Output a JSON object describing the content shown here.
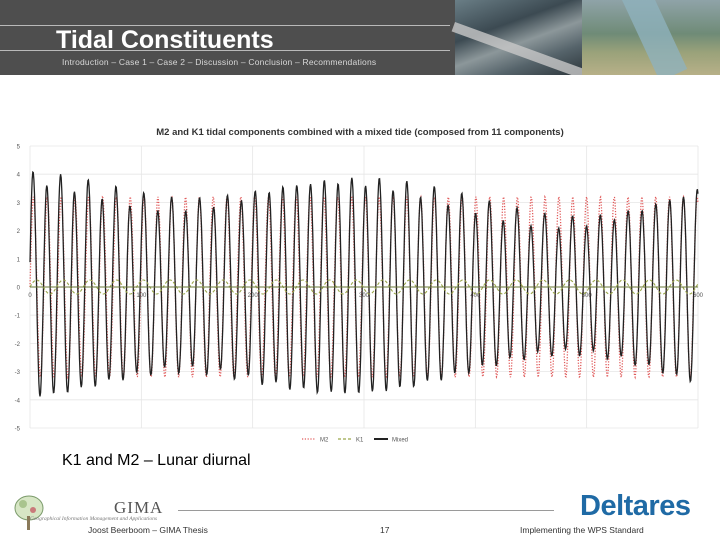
{
  "header": {
    "title": "Tidal Constituents",
    "breadcrumb": "Introduction – Case 1 – Case 2 – Discussion – Conclusion – Recommendations"
  },
  "chart_data": {
    "type": "line",
    "title": "M2 and K1 tidal components combined with a mixed tide (composed from 11 components)",
    "xlabel": "",
    "ylabel": "",
    "xlim": [
      0,
      600
    ],
    "ylim": [
      -5,
      5
    ],
    "x_ticks": [
      0,
      100,
      200,
      300,
      400,
      500,
      600
    ],
    "y_ticks": [
      -5,
      -4,
      -3,
      -2,
      -1,
      0,
      1,
      2,
      3,
      4,
      5
    ],
    "grid": true,
    "legend_position": "bottom",
    "sample_step": 0.5,
    "series": [
      {
        "name": "M2",
        "color": "#e05a5a",
        "style": "dotted",
        "formula": "3.2 * sin(2*pi*x/12.42)"
      },
      {
        "name": "K1",
        "color": "#9aa64a",
        "style": "dashed",
        "formula": "0.25 * sin(2*pi*x/23.93)"
      },
      {
        "name": "Mixed",
        "color": "#222222",
        "style": "solid",
        "formula": "3.2*sin(2*pi*x/12.42) + 0.5*sin(2*pi*x/12.0)*... (11 constituents)"
      }
    ]
  },
  "caption": "K1 and M2 – Lunar diurnal",
  "footer": {
    "author": "Joost Beerboom – GIMA Thesis",
    "page": "17",
    "right": "Implementing the WPS Standard"
  },
  "logos": {
    "gima": "GIMA",
    "gima_sub": "Geographical Information Management and Applications",
    "deltares": "Deltares",
    "deltares_color": "#1f6aa5"
  }
}
